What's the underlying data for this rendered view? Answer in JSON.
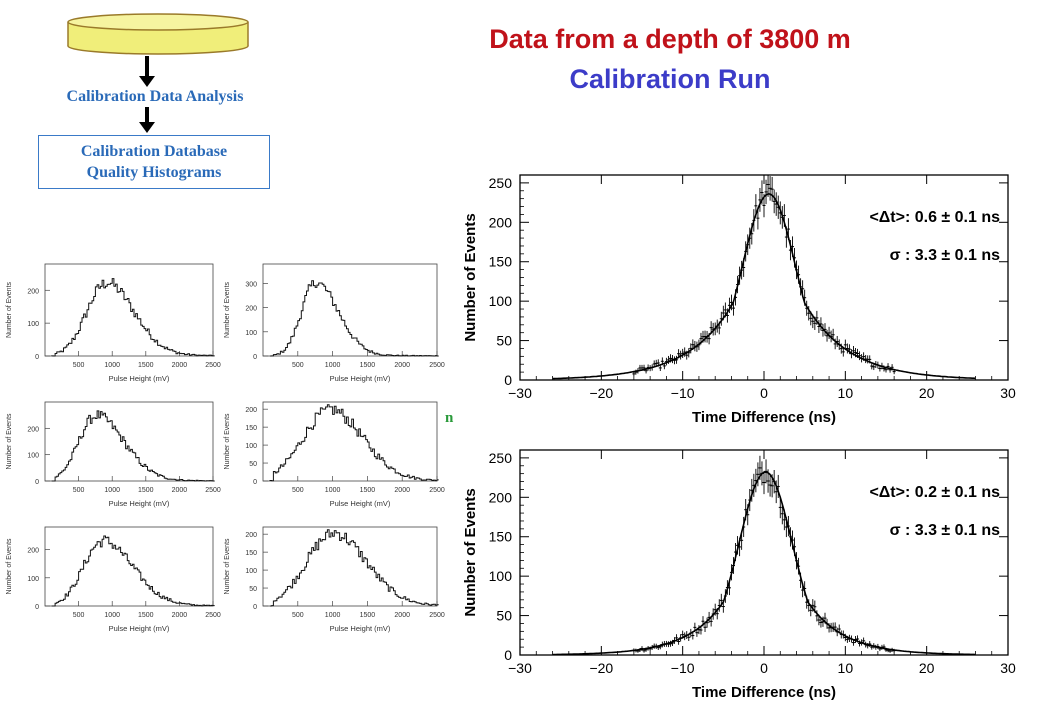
{
  "header": {
    "title": "Data from a depth of 3800 m",
    "subtitle": "Calibration Run"
  },
  "flow": {
    "step1_label": "Calibration Data Analysis",
    "db_line1": "Calibration Database",
    "db_line2": "Quality Histograms",
    "stray_glyph": "n"
  },
  "colors": {
    "title": "#c0121a",
    "subtitle": "#3c3cc8",
    "flow_text": "#2a6ab8",
    "cylinder_fill": "#f0ee7a",
    "cylinder_stroke": "#9a7a2a"
  },
  "chart_data": [
    {
      "type": "line",
      "id": "time-diff-top",
      "xlabel": "Time Difference (ns)",
      "ylabel": "Number of Events",
      "xlim": [
        -30,
        30
      ],
      "ylim": [
        0,
        260
      ],
      "xticks": [
        -30,
        -20,
        -10,
        0,
        10,
        20,
        30
      ],
      "yticks": [
        0,
        50,
        100,
        150,
        200,
        250
      ],
      "fit": {
        "mean": 0.6,
        "sigma": 3.3,
        "amplitude": 236,
        "tail": 5.5
      },
      "annotations": [
        "<Δt>:  0.6  ± 0.1 ns",
        "σ   :  3.3 ±  0.1 ns"
      ]
    },
    {
      "type": "line",
      "id": "time-diff-bottom",
      "xlabel": "Time Difference (ns)",
      "ylabel": "Number of Events",
      "xlim": [
        -30,
        30
      ],
      "ylim": [
        0,
        260
      ],
      "xticks": [
        -30,
        -20,
        -10,
        0,
        10,
        20,
        30
      ],
      "yticks": [
        0,
        50,
        100,
        150,
        200,
        250
      ],
      "fit": {
        "mean": 0.2,
        "sigma": 3.3,
        "amplitude": 232,
        "tail": 4.5
      },
      "annotations": [
        "<Δt>:  0.2  ± 0.1 ns",
        "σ   :  3.3 ±  0.1 ns"
      ]
    },
    {
      "type": "bar",
      "id": "pulse-height-1",
      "xlabel": "Pulse Height (mV)",
      "ylabel": "Number of Events",
      "xlim": [
        0,
        2500
      ],
      "ylim": [
        0,
        280
      ],
      "xticks": [
        500,
        1000,
        1500,
        2000,
        2500
      ],
      "yticks": [
        0,
        100,
        200
      ],
      "peak": {
        "center": 900,
        "height": 220,
        "width_left": 280,
        "width_right": 420
      }
    },
    {
      "type": "bar",
      "id": "pulse-height-2",
      "xlabel": "Pulse Height (mV)",
      "ylabel": "Number of Events",
      "xlim": [
        0,
        2500
      ],
      "ylim": [
        0,
        380
      ],
      "xticks": [
        500,
        1000,
        1500,
        2000,
        2500
      ],
      "yticks": [
        0,
        100,
        200,
        300
      ],
      "peak": {
        "center": 750,
        "height": 300,
        "width_left": 200,
        "width_right": 330
      }
    },
    {
      "type": "bar",
      "id": "pulse-height-3",
      "xlabel": "Pulse Height (mV)",
      "ylabel": "Number of Events",
      "xlim": [
        0,
        2500
      ],
      "ylim": [
        0,
        300
      ],
      "xticks": [
        500,
        1000,
        1500,
        2000,
        2500
      ],
      "yticks": [
        0,
        100,
        200
      ],
      "peak": {
        "center": 750,
        "height": 245,
        "width_left": 250,
        "width_right": 420
      }
    },
    {
      "type": "bar",
      "id": "pulse-height-4",
      "xlabel": "Pulse Height (mV)",
      "ylabel": "Number of Events",
      "xlim": [
        0,
        2500
      ],
      "ylim": [
        0,
        220
      ],
      "xticks": [
        500,
        1000,
        1500,
        2000,
        2500
      ],
      "yticks": [
        0,
        50,
        100,
        150,
        200
      ],
      "peak": {
        "center": 950,
        "height": 195,
        "width_left": 380,
        "width_right": 480
      }
    },
    {
      "type": "bar",
      "id": "pulse-height-5",
      "xlabel": "Pulse Height (mV)",
      "ylabel": "Number of Events",
      "xlim": [
        0,
        2500
      ],
      "ylim": [
        0,
        280
      ],
      "xticks": [
        500,
        1000,
        1500,
        2000,
        2500
      ],
      "yticks": [
        0,
        100,
        200
      ],
      "peak": {
        "center": 850,
        "height": 228,
        "width_left": 280,
        "width_right": 450
      }
    },
    {
      "type": "bar",
      "id": "pulse-height-6",
      "xlabel": "Pulse Height (mV)",
      "ylabel": "Number of Events",
      "xlim": [
        0,
        2500
      ],
      "ylim": [
        0,
        220
      ],
      "xticks": [
        500,
        1000,
        1500,
        2000,
        2500
      ],
      "yticks": [
        0,
        50,
        100,
        150,
        200
      ],
      "peak": {
        "center": 1000,
        "height": 200,
        "width_left": 380,
        "width_right": 480
      }
    }
  ]
}
